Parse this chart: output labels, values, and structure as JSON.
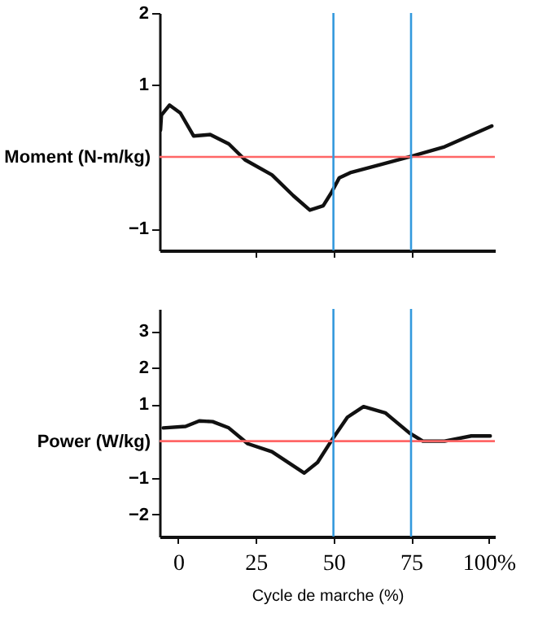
{
  "chart_data": [
    {
      "type": "line",
      "ylabel": "Moment (N-m/kg)",
      "xlim": [
        -6,
        102
      ],
      "xticks": [
        25,
        50,
        75
      ],
      "ylim": [
        -1.3,
        2
      ],
      "yticks": [
        -1,
        1,
        2
      ],
      "tick_labels": "y",
      "x": [
        -5.7,
        -5.4,
        -2.8,
        0.7,
        5,
        10.3,
        16.3,
        21.5,
        30.2,
        37.1,
        42.4,
        46.7,
        49.3,
        51.9,
        55.4,
        65,
        74.5,
        85.8,
        101
      ],
      "series": [
        {
          "color": "#111111",
          "values": [
            0.37,
            0.58,
            0.72,
            0.61,
            0.29,
            0.31,
            0.18,
            -0.04,
            -0.25,
            -0.54,
            -0.74,
            -0.68,
            -0.5,
            -0.29,
            -0.22,
            -0.11,
            0,
            0.14,
            0.43
          ]
        }
      ],
      "ref_lines": [
        {
          "axis": "y",
          "value": 0,
          "color": "#ff6666"
        },
        {
          "axis": "x",
          "value": 50,
          "color": "#3399dd"
        },
        {
          "axis": "x",
          "value": 75,
          "color": "#3399dd"
        }
      ]
    },
    {
      "type": "line",
      "ylabel": "Power (W/kg)",
      "xlabel": "Cycle de marche (%)",
      "xlim": [
        -6,
        102
      ],
      "xticks": [
        0,
        25,
        50,
        75,
        {
          "value": 100,
          "label": "100%"
        }
      ],
      "ylim": [
        -2.6,
        3.6
      ],
      "yticks": [
        -2,
        -1,
        1,
        2,
        3
      ],
      "x": [
        -4.8,
        2.4,
        6.8,
        11.1,
        16.3,
        22.4,
        30.2,
        40.6,
        44.9,
        49.8,
        54.5,
        59.7,
        66.7,
        74.5,
        78.8,
        85.8,
        94.4,
        100.5
      ],
      "series": [
        {
          "color": "#111111",
          "values": [
            0.36,
            0.4,
            0.55,
            0.53,
            0.36,
            -0.07,
            -0.29,
            -0.87,
            -0.58,
            0.07,
            0.65,
            0.94,
            0.77,
            0.22,
            0,
            0,
            0.14,
            0.14
          ]
        }
      ],
      "ref_lines": [
        {
          "axis": "y",
          "value": 0,
          "color": "#ff6666"
        },
        {
          "axis": "x",
          "value": 50,
          "color": "#3399dd"
        },
        {
          "axis": "x",
          "value": 75,
          "color": "#3399dd"
        }
      ]
    }
  ]
}
